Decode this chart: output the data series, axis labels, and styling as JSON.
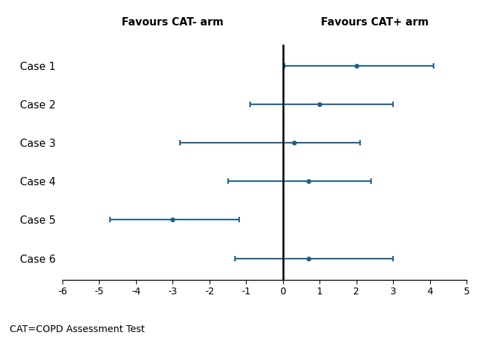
{
  "cases": [
    "Case 1",
    "Case 2",
    "Case 3",
    "Case 4",
    "Case 5",
    "Case 6"
  ],
  "centers": [
    2.0,
    1.0,
    0.3,
    0.7,
    -3.0,
    0.7
  ],
  "ci_lower": [
    0.05,
    -0.9,
    -2.8,
    -1.5,
    -4.7,
    -1.3
  ],
  "ci_upper": [
    4.1,
    3.0,
    2.1,
    2.4,
    -1.2,
    3.0
  ],
  "line_color": "#1f5f8b",
  "marker_color": "#1f5f8b",
  "vline_color": "#000000",
  "xlim": [
    -6,
    5
  ],
  "xticks": [
    -6,
    -5,
    -4,
    -3,
    -2,
    -1,
    0,
    1,
    2,
    3,
    4,
    5
  ],
  "xlabel_left": "Favours CAT- arm",
  "xlabel_right": "Favours CAT+ arm",
  "footnote": "CAT=COPD Assessment Test",
  "title_fontsize": 11,
  "label_fontsize": 11,
  "tick_fontsize": 10,
  "footnote_fontsize": 10,
  "line_width": 1.6,
  "cap_size": 3,
  "marker_size": 4
}
